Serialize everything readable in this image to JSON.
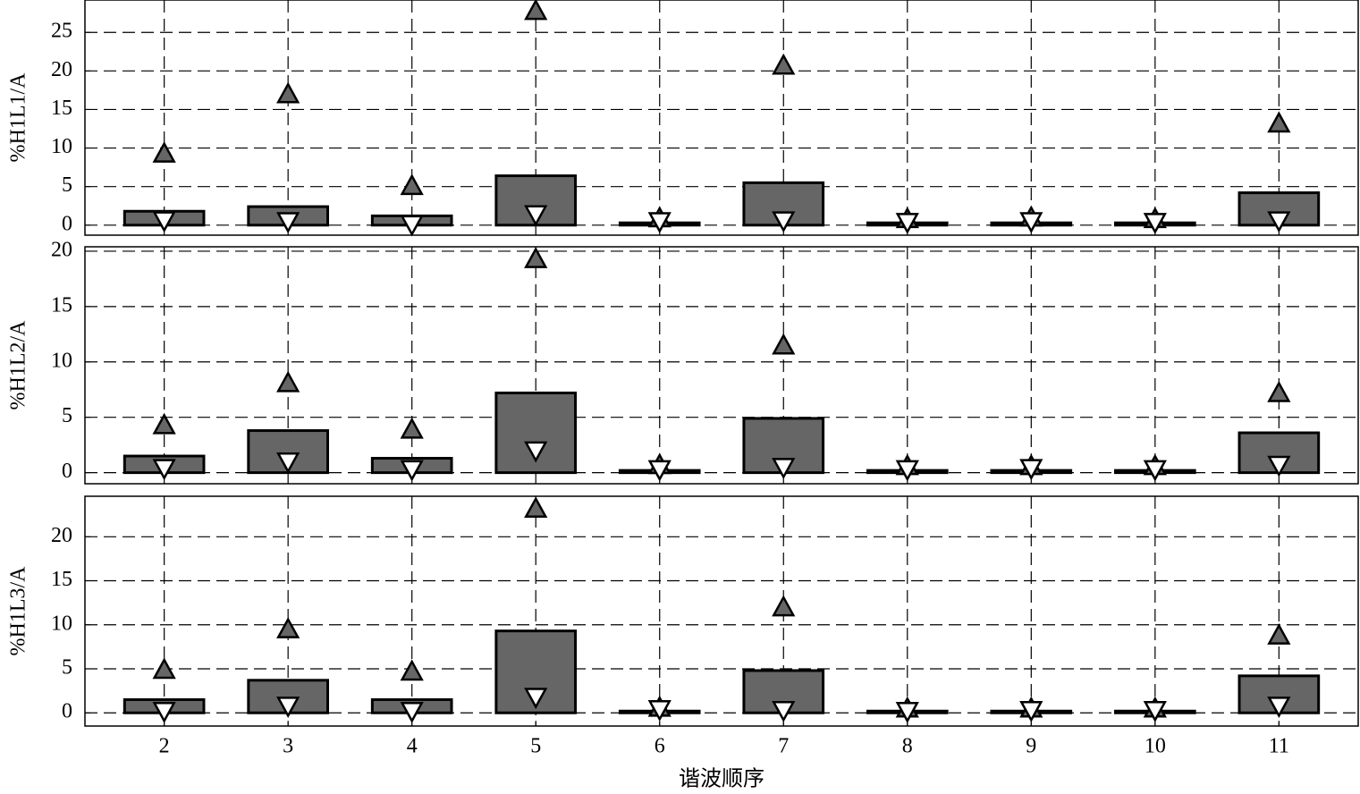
{
  "chart_data": [
    {
      "type": "bar",
      "ylabel": "%H1L1/A",
      "x": [
        2,
        3,
        4,
        5,
        6,
        7,
        8,
        9,
        10,
        11
      ],
      "xlim": [
        1.36,
        11.64
      ],
      "ylim": [
        -1.3,
        29.2
      ],
      "yticks": [
        0,
        5,
        10,
        15,
        20,
        25
      ],
      "grid": true,
      "series": [
        {
          "marker": "bar",
          "color": "#666666",
          "values": [
            1.8,
            2.4,
            1.2,
            6.4,
            0.3,
            5.5,
            0.3,
            0.3,
            0.3,
            4.2
          ]
        },
        {
          "marker": "triangle-up",
          "color": "#666666",
          "values": [
            9.3,
            17,
            5.1,
            27.8,
            0.9,
            20.7,
            0.8,
            1,
            0.8,
            13.2
          ]
        },
        {
          "marker": "triangle-down",
          "color": "#ffffff",
          "values": [
            0.6,
            0.5,
            0.1,
            1.4,
            0.5,
            0.6,
            0.4,
            0.5,
            0.4,
            0.6
          ]
        }
      ]
    },
    {
      "type": "bar",
      "ylabel": "%H1L2/A",
      "x": [
        2,
        3,
        4,
        5,
        6,
        7,
        8,
        9,
        10,
        11
      ],
      "xlim": [
        1.36,
        11.64
      ],
      "ylim": [
        -1,
        20.4
      ],
      "yticks": [
        0,
        5,
        10,
        15,
        20
      ],
      "grid": true,
      "series": [
        {
          "marker": "bar",
          "color": "#666666",
          "values": [
            1.5,
            3.8,
            1.3,
            7.2,
            0.2,
            4.9,
            0.2,
            0.2,
            0.2,
            3.6
          ]
        },
        {
          "marker": "triangle-up",
          "color": "#666666",
          "values": [
            4.3,
            8.1,
            3.9,
            19.3,
            0.7,
            11.5,
            0.6,
            0.6,
            0.6,
            7.2
          ]
        },
        {
          "marker": "triangle-down",
          "color": "#ffffff",
          "values": [
            0.4,
            1,
            0.3,
            2,
            0.3,
            0.5,
            0.3,
            0.4,
            0.3,
            0.7
          ]
        }
      ]
    },
    {
      "type": "bar",
      "ylabel": "%H1L3/A",
      "xlabel": "谐波顺序",
      "x": [
        2,
        3,
        4,
        5,
        6,
        7,
        8,
        9,
        10,
        11
      ],
      "xlim": [
        1.36,
        11.64
      ],
      "xticks": [
        2,
        3,
        4,
        5,
        6,
        7,
        8,
        9,
        10,
        11
      ],
      "ylim": [
        -1.5,
        24.6
      ],
      "yticks": [
        0,
        5,
        10,
        15,
        20
      ],
      "grid": true,
      "series": [
        {
          "marker": "bar",
          "color": "#666666",
          "values": [
            1.5,
            3.7,
            1.5,
            9.3,
            0.2,
            4.8,
            0.2,
            0.2,
            0.2,
            4.2
          ]
        },
        {
          "marker": "triangle-up",
          "color": "#666666",
          "values": [
            4.9,
            9.5,
            4.7,
            23.2,
            0.6,
            12,
            0.5,
            0.5,
            0.5,
            8.8
          ]
        },
        {
          "marker": "triangle-down",
          "color": "#ffffff",
          "values": [
            0.2,
            0.8,
            0.2,
            1.8,
            0.4,
            0.3,
            0.2,
            0.3,
            0.3,
            0.8
          ]
        }
      ]
    }
  ]
}
